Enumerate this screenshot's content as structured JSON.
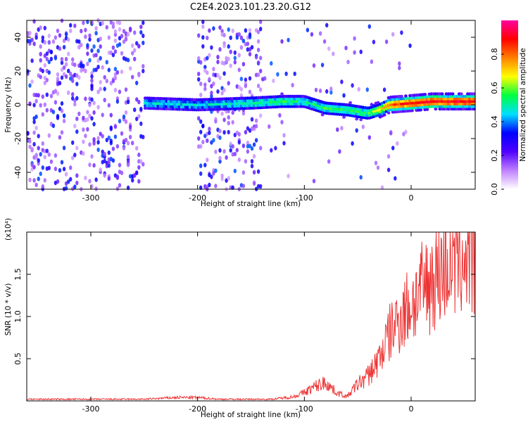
{
  "chart_data": [
    {
      "type": "heatmap",
      "title": "C2E4.2023.101.23.20.G12",
      "xlabel": "Height of straight line (km)",
      "ylabel": "Frequency (Hz)",
      "xlim": [
        -360,
        60
      ],
      "ylim": [
        -50,
        50
      ],
      "xticks": [
        -300,
        -200,
        -100,
        0
      ],
      "xtick_labels": [
        "-300",
        "-200",
        "-100",
        "0"
      ],
      "yticks": [
        -40,
        -20,
        0,
        20,
        40
      ],
      "ytick_labels": [
        "-40",
        "-20",
        "0",
        "20",
        "40"
      ],
      "colorbar": {
        "label": "Normalized spectral amplitude",
        "range": [
          0.0,
          1.0
        ],
        "ticks": [
          0.0,
          0.2,
          0.4,
          0.6,
          0.8
        ],
        "tick_labels": [
          "0.0",
          "0.2",
          "0.4",
          "0.6",
          "0.8"
        ],
        "colormap": [
          "#ffffff",
          "#c080ff",
          "#5000ff",
          "#0000ff",
          "#00e0ff",
          "#00ff40",
          "#ffff00",
          "#ff8000",
          "#ff0000",
          "#ff00a0"
        ]
      },
      "ridge": {
        "x": [
          -250,
          -200,
          -150,
          -120,
          -100,
          -80,
          -60,
          -40,
          -30,
          -20,
          0,
          20,
          40,
          60
        ],
        "frequency": [
          1,
          0,
          1,
          2,
          2,
          -2,
          -3,
          -5,
          -3,
          0,
          1,
          2,
          2,
          2
        ],
        "amplitude": [
          0.45,
          0.45,
          0.5,
          0.55,
          0.5,
          0.55,
          0.55,
          0.55,
          0.65,
          0.8,
          0.9,
          0.9,
          0.9,
          0.9
        ]
      },
      "noise_regions_x": [
        [
          -360,
          -250
        ],
        [
          -200,
          -140
        ]
      ]
    },
    {
      "type": "line",
      "xlabel": "Height of straight line (km)",
      "ylabel": "SNR (10 * v/v)",
      "y_multiplier_label": "(x10⁴)",
      "xlim": [
        -360,
        60
      ],
      "ylim": [
        0,
        2.0
      ],
      "xticks": [
        -300,
        -200,
        -100,
        0
      ],
      "xtick_labels": [
        "-300",
        "-200",
        "-100",
        "0"
      ],
      "yticks": [
        0.5,
        1.0,
        1.5
      ],
      "ytick_labels": [
        "0.5",
        "1.0",
        "1.5"
      ],
      "color": "#ee3333",
      "series": [
        {
          "x": [
            -360,
            -300,
            -250,
            -220,
            -200,
            -180,
            -150,
            -130,
            -110,
            -100,
            -90,
            -80,
            -70,
            -60,
            -50,
            -40,
            -30,
            -20,
            -10,
            0,
            10,
            20,
            30,
            40,
            50,
            60
          ],
          "values": [
            0.02,
            0.02,
            0.02,
            0.04,
            0.04,
            0.02,
            0.02,
            0.02,
            0.05,
            0.1,
            0.17,
            0.22,
            0.1,
            0.05,
            0.2,
            0.3,
            0.5,
            0.8,
            1.0,
            1.15,
            1.3,
            1.45,
            1.6,
            1.7,
            1.72,
            1.7
          ]
        }
      ]
    }
  ]
}
